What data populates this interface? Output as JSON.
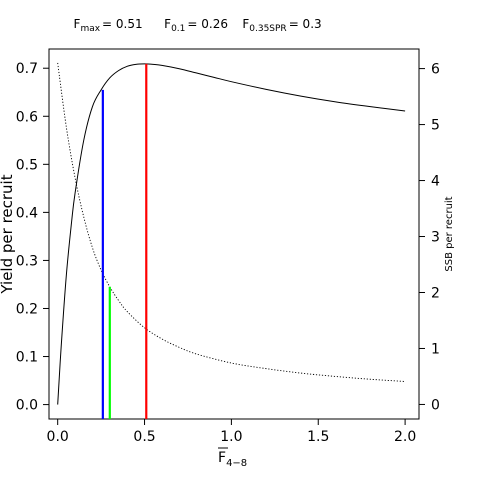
{
  "chart_data": {
    "type": "line",
    "title": {
      "fmax_label": "F",
      "fmax_sub": "max",
      "fmax_value": "= 0.51",
      "f01_label": "F",
      "f01_sub": "0.1",
      "f01_value": "= 0.26",
      "fspr_label": "F",
      "fspr_sub": "0.35SPR",
      "fspr_value": "= 0.3"
    },
    "xlabel": {
      "main": "F",
      "sub": "4−8"
    },
    "ylabel": "Yield per recruit",
    "y2label": "SSB per recruit",
    "xlim": [
      -0.05,
      2.08
    ],
    "ylim": [
      -0.03,
      0.74
    ],
    "y2lim": [
      -0.26,
      6.35
    ],
    "x_ticks": [
      {
        "value": 0.0,
        "label": "0.0"
      },
      {
        "value": 0.5,
        "label": "0.5"
      },
      {
        "value": 1.0,
        "label": "1.0"
      },
      {
        "value": 1.5,
        "label": "1.5"
      },
      {
        "value": 2.0,
        "label": "2.0"
      }
    ],
    "y_ticks": [
      {
        "value": 0.0,
        "label": "0.0"
      },
      {
        "value": 0.1,
        "label": "0.1"
      },
      {
        "value": 0.2,
        "label": "0.2"
      },
      {
        "value": 0.3,
        "label": "0.3"
      },
      {
        "value": 0.4,
        "label": "0.4"
      },
      {
        "value": 0.5,
        "label": "0.5"
      },
      {
        "value": 0.6,
        "label": "0.6"
      },
      {
        "value": 0.7,
        "label": "0.7"
      }
    ],
    "y2_ticks": [
      {
        "value": 0,
        "label": "0"
      },
      {
        "value": 1,
        "label": "1"
      },
      {
        "value": 2,
        "label": "2"
      },
      {
        "value": 3,
        "label": "3"
      },
      {
        "value": 4,
        "label": "4"
      },
      {
        "value": 5,
        "label": "5"
      },
      {
        "value": 6,
        "label": "6"
      }
    ],
    "series": [
      {
        "role": "yield",
        "axis": "left",
        "style": "solid",
        "color": "#000000",
        "x": [
          0,
          0.02,
          0.05,
          0.08,
          0.1,
          0.15,
          0.2,
          0.25,
          0.3,
          0.35,
          0.4,
          0.45,
          0.5,
          0.55,
          0.6,
          0.7,
          0.8,
          0.9,
          1.0,
          1.2,
          1.4,
          1.6,
          1.8,
          2.0
        ],
        "values": [
          0,
          0.12,
          0.27,
          0.38,
          0.44,
          0.55,
          0.62,
          0.655,
          0.68,
          0.695,
          0.704,
          0.708,
          0.709,
          0.708,
          0.706,
          0.699,
          0.69,
          0.681,
          0.672,
          0.656,
          0.642,
          0.63,
          0.62,
          0.611
        ]
      },
      {
        "role": "ssb",
        "axis": "right",
        "style": "dotted",
        "color": "#000000",
        "x": [
          0,
          0.05,
          0.1,
          0.15,
          0.2,
          0.25,
          0.3,
          0.35,
          0.4,
          0.5,
          0.6,
          0.7,
          0.8,
          1.0,
          1.2,
          1.4,
          1.6,
          1.8,
          2.0
        ],
        "values": [
          6.1,
          4.95,
          4.05,
          3.35,
          2.8,
          2.4,
          2.1,
          1.86,
          1.66,
          1.37,
          1.17,
          1.02,
          0.9,
          0.74,
          0.64,
          0.56,
          0.5,
          0.45,
          0.41
        ]
      }
    ],
    "reference_lines": [
      {
        "role": "F0.1",
        "x": 0.26,
        "y": 0.655,
        "color": "#0000ff"
      },
      {
        "role": "F0.35SPR",
        "x": 0.3,
        "y": 0.245,
        "color": "#00ff00"
      },
      {
        "role": "Fmax",
        "x": 0.51,
        "y": 0.709,
        "color": "#ff0000"
      }
    ],
    "grid": false
  }
}
